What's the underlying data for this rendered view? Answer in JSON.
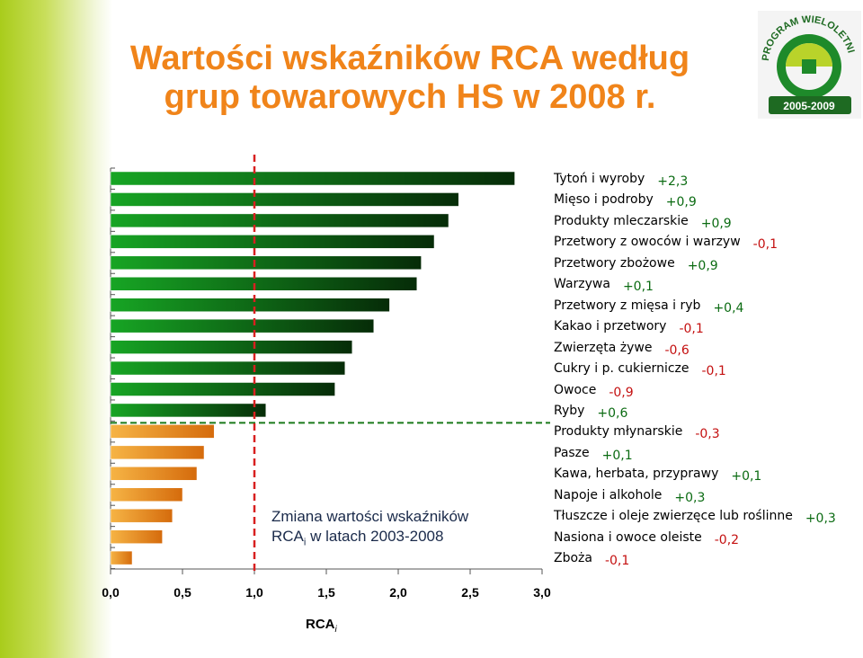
{
  "title": {
    "line1": "Wartości wskaźników RCA według",
    "line2": "grup towarowych HS w 2008 r."
  },
  "logo": {
    "name": "PROGRAM WIELOLETNI",
    "years": "2005-2009"
  },
  "annotation": {
    "line1": "Zmiana wartości wskaźników",
    "line2_prefix": "RCA",
    "line2_sub": "i",
    "line2_suffix": " w latach 2003-2008"
  },
  "colors": {
    "above_threshold_bar": "#0f8a1a",
    "below_threshold_bar": "#f7a21c",
    "positive_change": "#0b6b12",
    "negative_change": "#c41010",
    "threshold_line": "#d82020",
    "divider_line": "#1a7a1a"
  },
  "chart_data": {
    "type": "bar",
    "orientation": "horizontal",
    "title": "Wartości wskaźników RCA według grup towarowych HS w 2008 r.",
    "xlabel": "RCA",
    "xlabel_sub": "i",
    "xlim": [
      0,
      3.0
    ],
    "xticks": [
      "0,0",
      "0,5",
      "1,0",
      "1,5",
      "2,0",
      "2,5",
      "3,0"
    ],
    "threshold": 1.0,
    "categories": [
      "Tytoń i wyroby",
      "Mięso i podroby",
      "Produkty mleczarskie",
      "Przetwory z owoców i warzyw",
      "Przetwory zbożowe",
      "Warzywa",
      "Przetwory z mięsa i ryb",
      "Kakao i przetwory",
      "Zwierzęta żywe",
      "Cukry i p. cukiernicze",
      "Owoce",
      "Ryby",
      "Produkty młynarskie",
      "Pasze",
      "Kawa, herbata, przyprawy",
      "Napoje i alkohole",
      "Tłuszcze i oleje zwierzęce lub roślinne",
      "Nasiona i owoce oleiste",
      "Zboża"
    ],
    "values": [
      2.81,
      2.42,
      2.35,
      2.25,
      2.16,
      2.13,
      1.94,
      1.83,
      1.68,
      1.63,
      1.56,
      1.08,
      0.72,
      0.65,
      0.6,
      0.5,
      0.43,
      0.36,
      0.15
    ],
    "changes": [
      "+2,3",
      "+0,9",
      "+0,9",
      "-0,1",
      "+0,9",
      "+0,1",
      "+0,4",
      "-0,1",
      "-0,6",
      "-0,1",
      "-0,9",
      "+0,6",
      "-0,3",
      "+0,1",
      "+0,1",
      "+0,3",
      "+0,3",
      "-0,2",
      "-0,1"
    ]
  }
}
